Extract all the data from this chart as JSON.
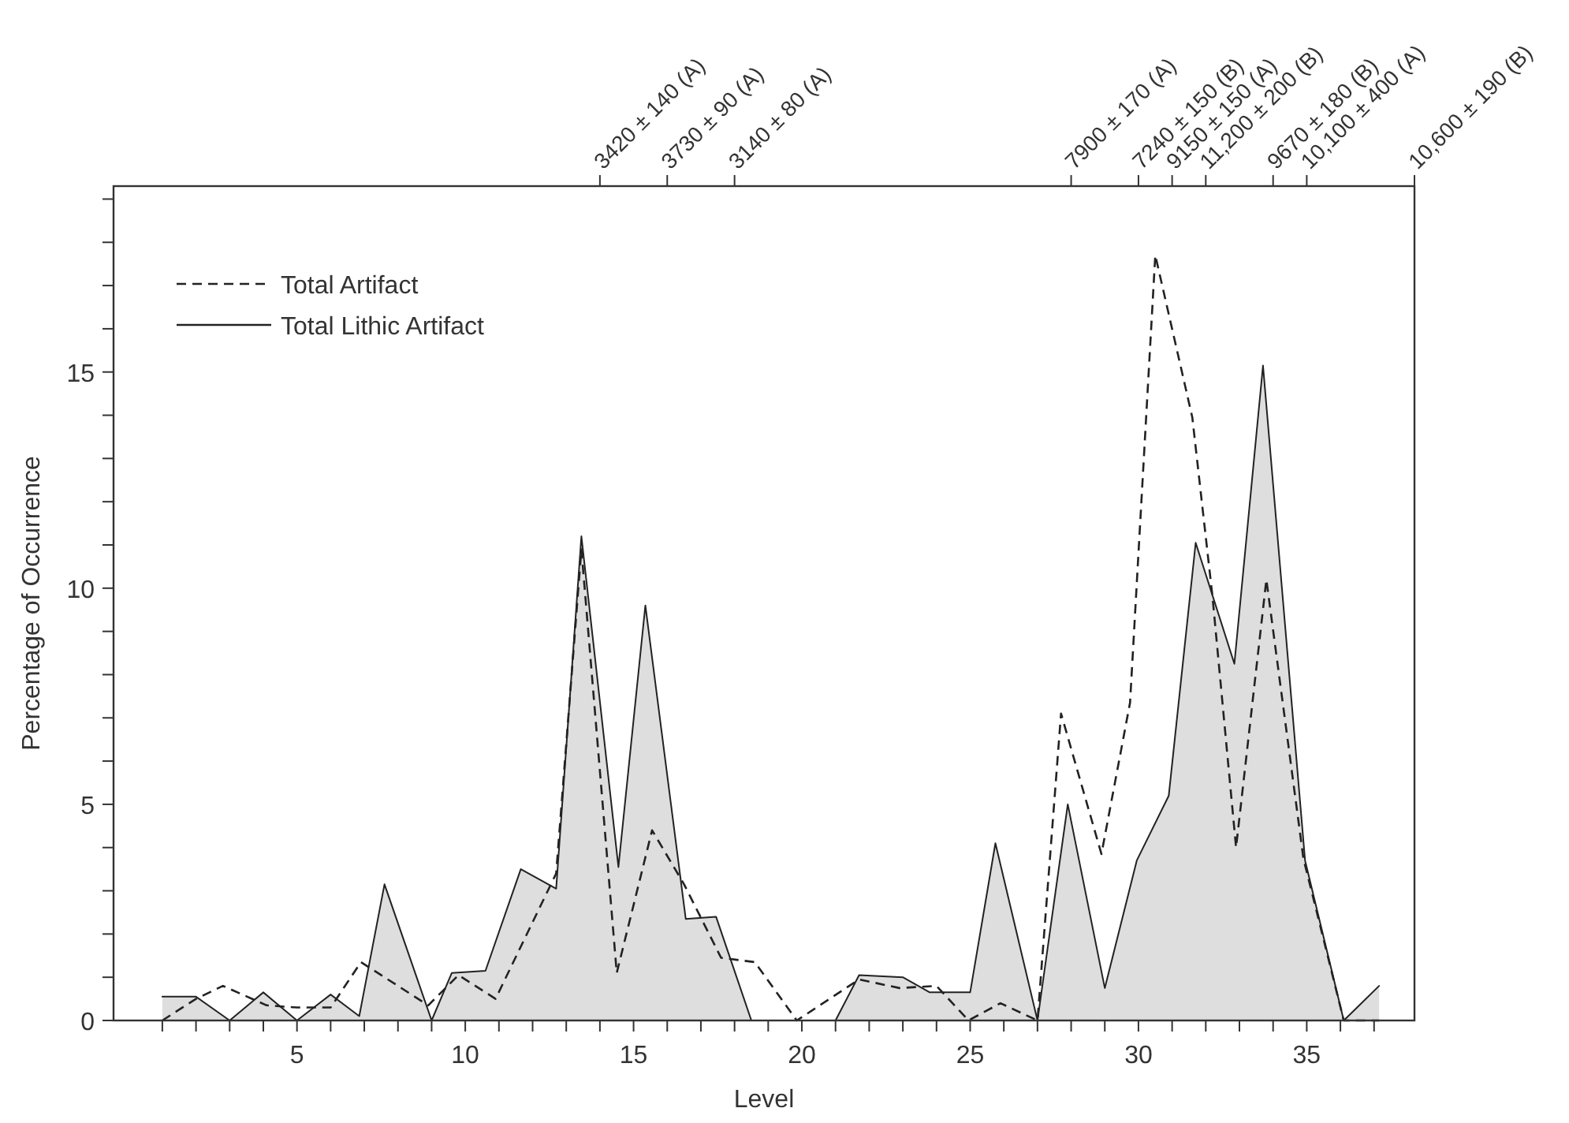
{
  "chart_data": {
    "type": "line",
    "xlabel": "Level",
    "ylabel": "Percentage of Occurrence",
    "xlim": [
      -0.45,
      38.2
    ],
    "ylim": [
      0,
      19.3
    ],
    "xticks": [
      {
        "value": 1,
        "label": null
      },
      {
        "value": 2,
        "label": null
      },
      {
        "value": 3,
        "label": null
      },
      {
        "value": 4,
        "label": null
      },
      5,
      {
        "value": 6,
        "label": null
      },
      {
        "value": 7,
        "label": null
      },
      {
        "value": 8,
        "label": null
      },
      {
        "value": 9,
        "label": null
      },
      10,
      {
        "value": 11,
        "label": null
      },
      {
        "value": 12,
        "label": null
      },
      {
        "value": 13,
        "label": null
      },
      {
        "value": 14,
        "label": null
      },
      15,
      {
        "value": 16,
        "label": null
      },
      {
        "value": 17,
        "label": null
      },
      {
        "value": 18,
        "label": null
      },
      {
        "value": 19,
        "label": null
      },
      20,
      {
        "value": 21,
        "label": null
      },
      {
        "value": 22,
        "label": null
      },
      {
        "value": 23,
        "label": null
      },
      {
        "value": 24,
        "label": null
      },
      25,
      {
        "value": 26,
        "label": null
      },
      {
        "value": 27,
        "label": null
      },
      {
        "value": 28,
        "label": null
      },
      {
        "value": 29,
        "label": null
      },
      30,
      {
        "value": 31,
        "label": null
      },
      {
        "value": 32,
        "label": null
      },
      {
        "value": 33,
        "label": null
      },
      {
        "value": 34,
        "label": null
      },
      35,
      {
        "value": 36,
        "label": null
      },
      {
        "value": 37,
        "label": null
      }
    ],
    "yticks": [
      0,
      {
        "value": 1,
        "label": null
      },
      {
        "value": 2,
        "label": null
      },
      {
        "value": 3,
        "label": null
      },
      {
        "value": 4,
        "label": null
      },
      5,
      {
        "value": 6,
        "label": null
      },
      {
        "value": 7,
        "label": null
      },
      {
        "value": 8,
        "label": null
      },
      {
        "value": 9,
        "label": null
      },
      10,
      {
        "value": 11,
        "label": null
      },
      {
        "value": 12,
        "label": null
      },
      {
        "value": 13,
        "label": null
      },
      {
        "value": 14,
        "label": null
      },
      15,
      {
        "value": 16,
        "label": null
      },
      {
        "value": 17,
        "label": null
      },
      {
        "value": 18,
        "label": null
      },
      {
        "value": 19,
        "label": null
      }
    ],
    "ref_lines": [
      {
        "axis": "x",
        "value": 14,
        "label": "3420 ± 140 (A)"
      },
      {
        "axis": "x",
        "value": 16,
        "label": "3730 ± 90 (A)"
      },
      {
        "axis": "x",
        "value": 18,
        "label": "3140 ± 80 (A)"
      },
      {
        "axis": "x",
        "value": 28,
        "label": "7900 ± 170 (A)"
      },
      {
        "axis": "x",
        "value": 30,
        "label": "7240 ± 150 (B)"
      },
      {
        "axis": "x",
        "value": 31,
        "label": "9150 ± 150 (A)"
      },
      {
        "axis": "x",
        "value": 32,
        "label": "11,200 ± 200 (B)"
      },
      {
        "axis": "x",
        "value": 34,
        "label": "9670 ± 180 (B)"
      },
      {
        "axis": "x",
        "value": 35,
        "label": "10,100 ± 400 (A)"
      },
      {
        "axis": "x",
        "value": 38.2,
        "label": "10,600 ± 190 (B)"
      }
    ],
    "legend": "top left",
    "grid": false,
    "series": [
      {
        "name": "Total Artifact",
        "line_style": "dashed",
        "color": "#222222",
        "x": [
          1,
          2,
          2.8,
          4.1,
          5,
          6,
          6.9,
          8.9,
          9.8,
          10.9,
          12.7,
          13.45,
          14.5,
          15.55,
          16.5,
          17.6,
          18.6,
          19.85,
          21.7,
          22.9,
          24,
          24.95,
          25.9,
          27,
          27.7,
          28.9,
          29.75,
          30.5,
          31.6,
          32.2,
          32.9,
          33.8,
          34.9,
          36.1,
          37.15
        ],
        "values": [
          0,
          0.5,
          0.8,
          0.35,
          0.3,
          0.3,
          1.35,
          0.35,
          1.05,
          0.5,
          3.4,
          10.9,
          1.1,
          4.4,
          3.15,
          1.45,
          1.35,
          0,
          0.95,
          0.75,
          0.8,
          0,
          0.4,
          0,
          7.1,
          3.85,
          7.35,
          17.7,
          13.95,
          9.8,
          4,
          10.2,
          3.75,
          0,
          0
        ]
      },
      {
        "name": "Total Lithic Artifact",
        "type": "area",
        "line_style": "solid",
        "color": "#222222",
        "x": [
          1,
          2,
          3,
          4,
          5,
          6,
          6.85,
          7.6,
          9,
          9.6,
          10.6,
          11.65,
          12.7,
          13.45,
          14.55,
          15.35,
          16.55,
          17.45,
          18.5,
          21,
          21.7,
          23,
          23.8,
          25,
          25.75,
          27,
          27.9,
          29,
          29.95,
          30.9,
          31.7,
          32.85,
          33.7,
          34.95,
          36.1,
          37.15
        ],
        "values": [
          0.55,
          0.55,
          0,
          0.65,
          0,
          0.6,
          0.1,
          3.15,
          0,
          1.1,
          1.15,
          3.5,
          3.05,
          11.2,
          3.55,
          9.6,
          2.35,
          2.4,
          0,
          0,
          1.05,
          1,
          0.65,
          0.65,
          4.1,
          0,
          5,
          0.75,
          3.7,
          5.2,
          11.05,
          8.25,
          15.15,
          3.7,
          0,
          0.8
        ]
      }
    ]
  }
}
